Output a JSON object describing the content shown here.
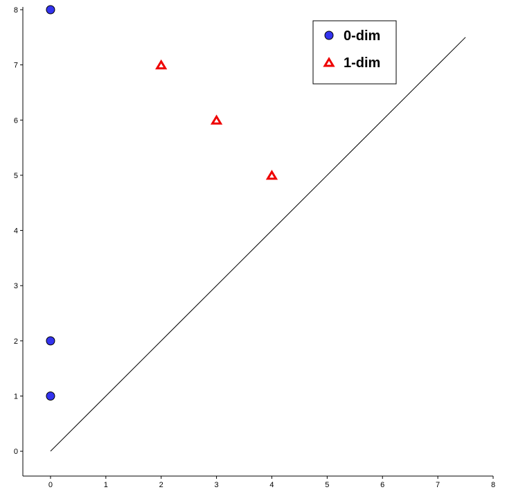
{
  "chart_data": {
    "type": "scatter",
    "title": "",
    "xlabel": "",
    "ylabel": "",
    "xlim": [
      -0.5,
      8
    ],
    "ylim": [
      -0.45,
      8.05
    ],
    "x_ticks": [
      "0",
      "1",
      "2",
      "3",
      "4",
      "5",
      "6",
      "7",
      "8"
    ],
    "y_ticks": [
      "0",
      "1",
      "2",
      "3",
      "4",
      "5",
      "6",
      "7",
      "8"
    ],
    "grid": false,
    "legend_position": "top-right",
    "series": [
      {
        "name": "0-dim",
        "marker": "circle",
        "color": "#3333ee",
        "points": [
          {
            "x": 0,
            "y": 8
          },
          {
            "x": 0,
            "y": 2
          },
          {
            "x": 0,
            "y": 1
          }
        ]
      },
      {
        "name": "1-dim",
        "marker": "triangle",
        "color": "#ee0000",
        "points": [
          {
            "x": 2,
            "y": 7
          },
          {
            "x": 3,
            "y": 6
          },
          {
            "x": 4,
            "y": 5
          }
        ]
      }
    ],
    "diagonal": {
      "from": 0,
      "to": 7.5
    }
  }
}
